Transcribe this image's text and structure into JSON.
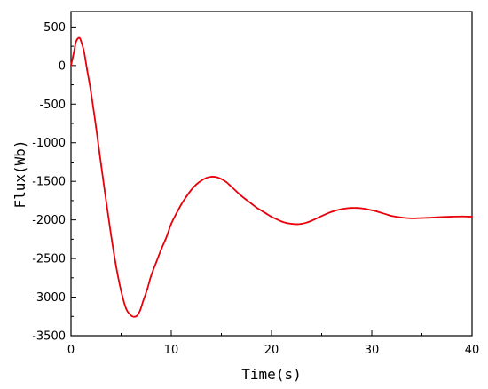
{
  "chart_data": {
    "type": "line",
    "title": "",
    "xlabel": "Time(s)",
    "ylabel": "Flux(Wb)",
    "xlim": [
      0,
      40
    ],
    "ylim": [
      -3500,
      700
    ],
    "x_ticks": [
      0,
      10,
      20,
      30,
      40
    ],
    "y_ticks": [
      500,
      0,
      -500,
      -1000,
      -1500,
      -2000,
      -2500,
      -3000,
      -3500
    ],
    "grid": false,
    "legend": "none",
    "series": [
      {
        "color": "#e8000b",
        "x": [
          0,
          0.3,
          0.5,
          0.8,
          1.0,
          1.3,
          1.6,
          2.0,
          2.5,
          3.0,
          3.5,
          4.0,
          4.5,
          5.0,
          5.5,
          6.0,
          6.3,
          6.6,
          6.9,
          7.2,
          7.6,
          8.0,
          8.5,
          9.0,
          9.5,
          10.0,
          10.5,
          11.0,
          11.5,
          12.0,
          12.5,
          13.0,
          13.5,
          14.0,
          14.5,
          15.0,
          15.5,
          16.0,
          16.5,
          17.0,
          17.5,
          18.0,
          18.5,
          19.0,
          19.5,
          20.0,
          20.5,
          21.0,
          21.5,
          22.0,
          22.5,
          23.0,
          23.5,
          24.0,
          24.5,
          25.0,
          25.5,
          26.0,
          26.5,
          27.0,
          27.5,
          28.0,
          28.5,
          29.0,
          29.5,
          30.0,
          30.5,
          31.0,
          31.5,
          32.0,
          33.0,
          34.0,
          35.0,
          36.0,
          37.0,
          38.0,
          39.0,
          40.0
        ],
        "y": [
          0,
          180,
          310,
          360,
          320,
          180,
          -50,
          -350,
          -800,
          -1280,
          -1750,
          -2200,
          -2600,
          -2920,
          -3150,
          -3240,
          -3255,
          -3240,
          -3170,
          -3050,
          -2900,
          -2720,
          -2550,
          -2380,
          -2230,
          -2050,
          -1920,
          -1800,
          -1700,
          -1610,
          -1540,
          -1490,
          -1455,
          -1440,
          -1445,
          -1470,
          -1510,
          -1570,
          -1630,
          -1690,
          -1740,
          -1790,
          -1840,
          -1880,
          -1920,
          -1960,
          -1990,
          -2020,
          -2040,
          -2050,
          -2055,
          -2050,
          -2035,
          -2010,
          -1980,
          -1950,
          -1920,
          -1895,
          -1875,
          -1860,
          -1850,
          -1845,
          -1845,
          -1850,
          -1860,
          -1875,
          -1890,
          -1910,
          -1930,
          -1950,
          -1970,
          -1980,
          -1975,
          -1970,
          -1962,
          -1958,
          -1955,
          -1958
        ]
      }
    ]
  }
}
